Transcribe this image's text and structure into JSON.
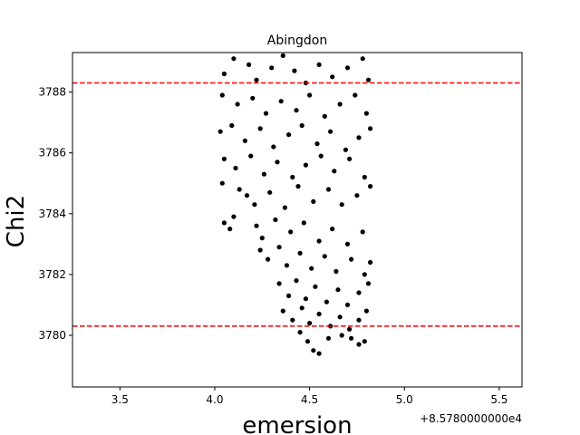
{
  "chart_data": {
    "type": "scatter",
    "title": "Abingdon",
    "xlabel": "emersion",
    "ylabel": "Chi2",
    "x_offset_label": "+8.5780000000e4",
    "xlim": [
      3.25,
      5.62
    ],
    "ylim": [
      3778.3,
      3789.3
    ],
    "xticks": [
      3.5,
      4.0,
      4.5,
      5.0,
      5.5
    ],
    "xtick_labels": [
      "3.5",
      "4.0",
      "4.5",
      "5.0",
      "5.5"
    ],
    "yticks": [
      3780,
      3782,
      3784,
      3786,
      3788
    ],
    "ytick_labels": [
      "3780",
      "3782",
      "3784",
      "3786",
      "3788"
    ],
    "grid": false,
    "hlines": [
      {
        "y": 3788.3,
        "color": "#ff0000",
        "style": "dashed"
      },
      {
        "y": 3780.3,
        "color": "#ff0000",
        "style": "dashed"
      }
    ],
    "series": [
      {
        "marker_color": "#000000",
        "points": [
          [
            4.05,
            3788.6
          ],
          [
            4.1,
            3789.1
          ],
          [
            4.18,
            3788.9
          ],
          [
            4.22,
            3788.4
          ],
          [
            4.3,
            3788.8
          ],
          [
            4.36,
            3789.2
          ],
          [
            4.42,
            3788.7
          ],
          [
            4.48,
            3788.3
          ],
          [
            4.55,
            3788.9
          ],
          [
            4.62,
            3788.5
          ],
          [
            4.7,
            3788.8
          ],
          [
            4.78,
            3789.1
          ],
          [
            4.81,
            3788.4
          ],
          [
            4.04,
            3787.9
          ],
          [
            4.12,
            3787.6
          ],
          [
            4.2,
            3787.8
          ],
          [
            4.27,
            3787.3
          ],
          [
            4.35,
            3787.7
          ],
          [
            4.43,
            3787.4
          ],
          [
            4.5,
            3787.9
          ],
          [
            4.58,
            3787.2
          ],
          [
            4.66,
            3787.6
          ],
          [
            4.74,
            3787.9
          ],
          [
            4.8,
            3787.3
          ],
          [
            4.03,
            3786.7
          ],
          [
            4.09,
            3786.9
          ],
          [
            4.16,
            3786.4
          ],
          [
            4.24,
            3786.8
          ],
          [
            4.31,
            3786.2
          ],
          [
            4.39,
            3786.6
          ],
          [
            4.46,
            3786.9
          ],
          [
            4.54,
            3786.3
          ],
          [
            4.61,
            3786.7
          ],
          [
            4.69,
            3786.1
          ],
          [
            4.76,
            3786.5
          ],
          [
            4.82,
            3786.8
          ],
          [
            4.05,
            3785.8
          ],
          [
            4.11,
            3785.5
          ],
          [
            4.19,
            3785.9
          ],
          [
            4.26,
            3785.3
          ],
          [
            4.33,
            3785.7
          ],
          [
            4.41,
            3785.2
          ],
          [
            4.48,
            3785.6
          ],
          [
            4.56,
            3785.9
          ],
          [
            4.63,
            3785.4
          ],
          [
            4.71,
            3785.8
          ],
          [
            4.79,
            3785.2
          ],
          [
            4.04,
            3785.0
          ],
          [
            4.13,
            3784.8
          ],
          [
            4.17,
            3784.6
          ],
          [
            4.21,
            3784.3
          ],
          [
            4.29,
            3784.7
          ],
          [
            4.37,
            3784.2
          ],
          [
            4.44,
            3784.9
          ],
          [
            4.52,
            3784.4
          ],
          [
            4.6,
            3784.8
          ],
          [
            4.67,
            3784.3
          ],
          [
            4.75,
            3784.6
          ],
          [
            4.82,
            3784.9
          ],
          [
            4.05,
            3783.7
          ],
          [
            4.08,
            3783.5
          ],
          [
            4.1,
            3783.9
          ],
          [
            4.22,
            3783.6
          ],
          [
            4.25,
            3783.2
          ],
          [
            4.32,
            3783.8
          ],
          [
            4.4,
            3783.4
          ],
          [
            4.47,
            3783.7
          ],
          [
            4.55,
            3783.1
          ],
          [
            4.62,
            3783.5
          ],
          [
            4.7,
            3783.0
          ],
          [
            4.78,
            3783.4
          ],
          [
            4.24,
            3782.8
          ],
          [
            4.28,
            3782.5
          ],
          [
            4.34,
            3782.9
          ],
          [
            4.38,
            3782.3
          ],
          [
            4.45,
            3782.7
          ],
          [
            4.51,
            3782.2
          ],
          [
            4.58,
            3782.6
          ],
          [
            4.64,
            3782.1
          ],
          [
            4.72,
            3782.5
          ],
          [
            4.79,
            3782.0
          ],
          [
            4.82,
            3782.4
          ],
          [
            4.34,
            3781.7
          ],
          [
            4.39,
            3781.3
          ],
          [
            4.43,
            3781.8
          ],
          [
            4.48,
            3781.2
          ],
          [
            4.53,
            3781.6
          ],
          [
            4.59,
            3781.1
          ],
          [
            4.65,
            3781.5
          ],
          [
            4.7,
            3781.0
          ],
          [
            4.76,
            3781.4
          ],
          [
            4.81,
            3781.7
          ],
          [
            4.36,
            3780.8
          ],
          [
            4.41,
            3780.5
          ],
          [
            4.46,
            3780.9
          ],
          [
            4.5,
            3780.4
          ],
          [
            4.55,
            3780.7
          ],
          [
            4.61,
            3780.3
          ],
          [
            4.66,
            3780.6
          ],
          [
            4.71,
            3780.2
          ],
          [
            4.76,
            3780.5
          ],
          [
            4.8,
            3780.8
          ],
          [
            4.45,
            3780.1
          ],
          [
            4.49,
            3779.8
          ],
          [
            4.52,
            3779.5
          ],
          [
            4.55,
            3779.4
          ],
          [
            4.6,
            3779.9
          ],
          [
            4.67,
            3780.0
          ],
          [
            4.72,
            3779.9
          ],
          [
            4.76,
            3779.7
          ],
          [
            4.79,
            3779.8
          ]
        ]
      }
    ]
  }
}
